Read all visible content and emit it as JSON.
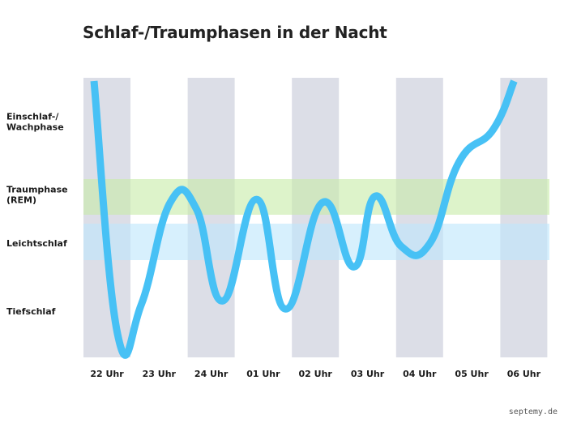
{
  "title": "Schlaf-/Traumphasen in der Nacht",
  "watermark": "septemy.de",
  "colors": {
    "column": "#dcdee7",
    "rem_band": "#c8ecaa",
    "light_band": "#bfe6fb",
    "curve": "#47c1f5"
  },
  "chart_data": {
    "type": "line",
    "title": "Schlaf-/Traumphasen in der Nacht",
    "categories": [
      "22 Uhr",
      "23 Uhr",
      "24 Uhr",
      "01 Uhr",
      "02 Uhr",
      "03 Uhr",
      "04 Uhr",
      "05 Uhr",
      "06 Uhr"
    ],
    "levels": [
      {
        "key": "wach",
        "label": [
          "Einschlaf-/",
          "Wachphase"
        ],
        "value": 3
      },
      {
        "key": "rem",
        "label": [
          "Traumphase",
          "(REM)"
        ],
        "value": 2
      },
      {
        "key": "leicht",
        "label": [
          "Leichtschlaf"
        ],
        "value": 1
      },
      {
        "key": "tief",
        "label": [
          "Tiefschlaf"
        ],
        "value": 0
      }
    ],
    "curve": {
      "x": [
        0,
        0.45,
        0.9,
        1.45,
        1.95,
        2.45,
        3.1,
        3.65,
        4.35,
        4.95,
        5.35,
        5.85,
        6.4,
        6.95,
        7.6,
        8.0
      ],
      "y": [
        3.85,
        0.05,
        0.4,
        2.0,
        1.92,
        0.45,
        2.05,
        0.35,
        2.0,
        0.9,
        2.1,
        1.4,
        1.5,
        2.65,
        3.1,
        3.85
      ]
    },
    "grid": false
  }
}
